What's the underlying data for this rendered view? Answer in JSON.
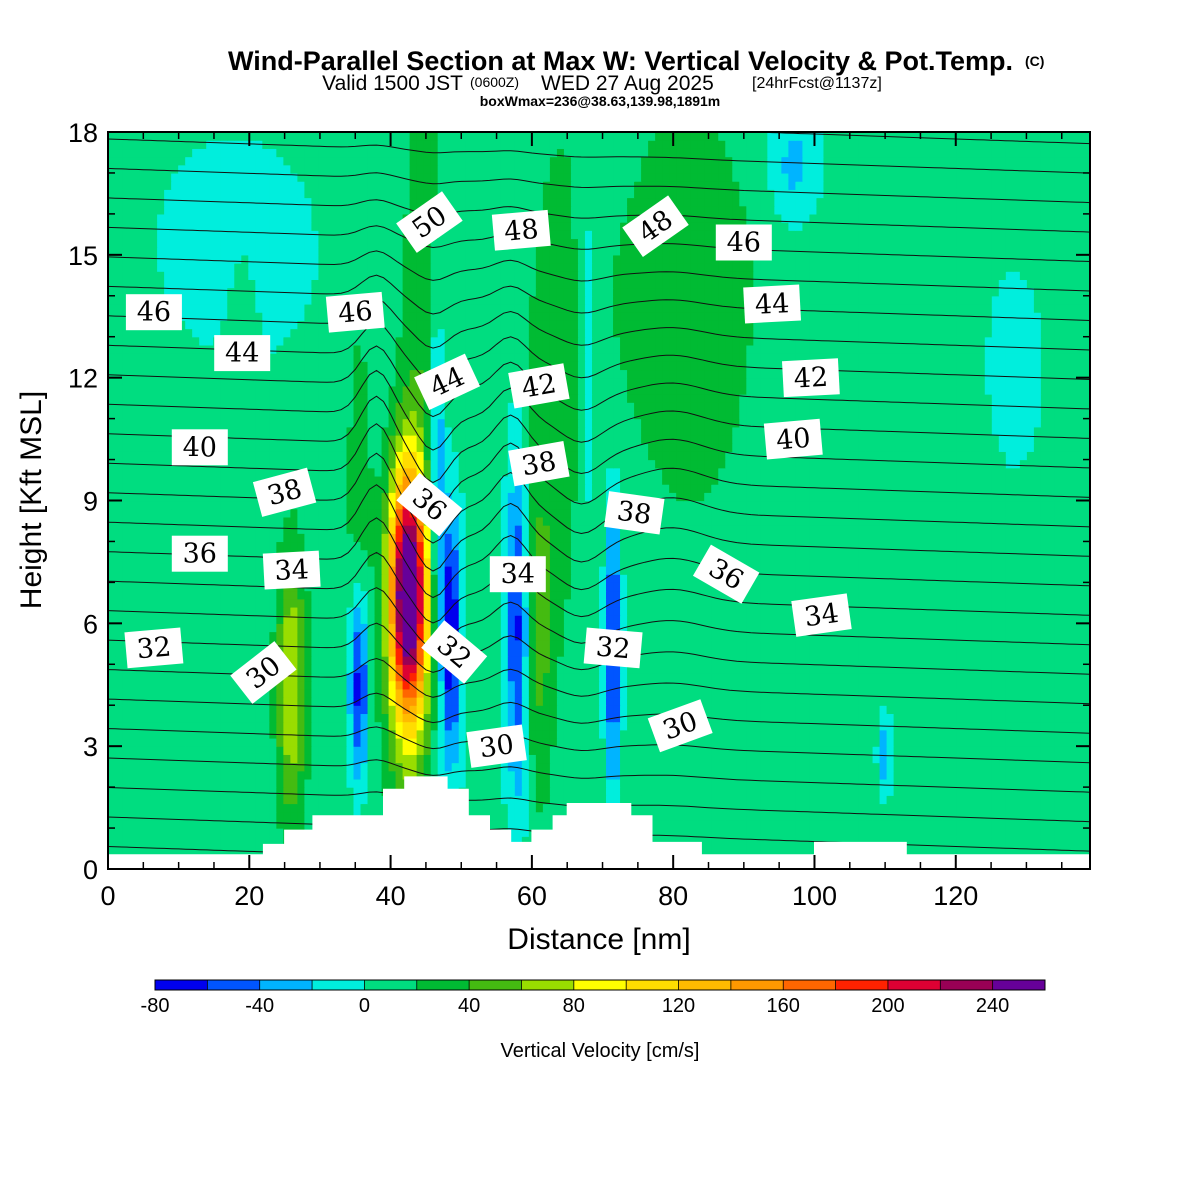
{
  "header": {
    "title": "Wind-Parallel Section at Max W: Vertical Velocity & Pot.Temp.",
    "copyright": "(C)",
    "valid_prefix": "Valid 1500 JST",
    "valid_utc": "(0600Z)",
    "valid_date": "WED 27 Aug 2025",
    "fcst": "[24hrFcst@1137z]",
    "boxwmax": "boxWmax=236@38.63,139.98,1891m"
  },
  "chart_data": {
    "type": "heatmap",
    "xlabel": "Distance [nm]",
    "ylabel": "Height [Kft MSL]",
    "xlim": [
      0,
      139
    ],
    "ylim": [
      0,
      18
    ],
    "xticks": [
      "0",
      "20",
      "40",
      "60",
      "80",
      "100",
      "120"
    ],
    "yticks": [
      "0",
      "3",
      "6",
      "9",
      "12",
      "15",
      "18"
    ],
    "colorbar": {
      "label": "Vertical Velocity [cm/s]",
      "ticks": [
        "-80",
        "-40",
        "0",
        "40",
        "80",
        "120",
        "160",
        "200",
        "240"
      ],
      "levels": [
        -80,
        -60,
        -40,
        -20,
        0,
        20,
        40,
        60,
        80,
        100,
        120,
        140,
        160,
        180,
        200,
        220,
        240,
        260
      ],
      "colors": [
        "#0000ee",
        "#0055ff",
        "#00b4ff",
        "#00eedd",
        "#00dd80",
        "#00bb33",
        "#44bb11",
        "#99dd00",
        "#ffff00",
        "#ffdd00",
        "#ffbb00",
        "#ff9900",
        "#ff6600",
        "#ff2200",
        "#dd0033",
        "#990055",
        "#660099"
      ]
    },
    "background_value": 5,
    "features": [
      {
        "x": 42.5,
        "y": 6.8,
        "sx": 1.8,
        "sy": 2.0,
        "value": 240
      },
      {
        "x": 42.5,
        "y": 5.5,
        "sx": 2.3,
        "sy": 3.6,
        "value": 60
      },
      {
        "x": 26,
        "y": 4.5,
        "sx": 1.5,
        "sy": 2.4,
        "value": 75
      },
      {
        "x": 45,
        "y": 14.5,
        "sx": 2.5,
        "sy": 4.5,
        "value": 30
      },
      {
        "x": 35.5,
        "y": 4.5,
        "sx": 1.0,
        "sy": 1.8,
        "value": -95
      },
      {
        "x": 35.5,
        "y": 7.5,
        "sx": 1.4,
        "sy": 5.0,
        "value": 30
      },
      {
        "x": 46.5,
        "y": 10.2,
        "sx": 0.9,
        "sy": 3.0,
        "value": -55
      },
      {
        "x": 48.5,
        "y": 5.8,
        "sx": 1.0,
        "sy": 2.2,
        "value": -90
      },
      {
        "x": 58,
        "y": 6.0,
        "sx": 1.1,
        "sy": 3.0,
        "value": -75
      },
      {
        "x": 61,
        "y": 5.5,
        "sx": 1.5,
        "sy": 3.0,
        "value": 35
      },
      {
        "x": 64,
        "y": 12.0,
        "sx": 4.0,
        "sy": 5.0,
        "value": 25
      },
      {
        "x": 68,
        "y": 12.5,
        "sx": 1.2,
        "sy": 4.0,
        "value": -30
      },
      {
        "x": 71.5,
        "y": 5.5,
        "sx": 0.8,
        "sy": 2.5,
        "value": -80
      },
      {
        "x": 82,
        "y": 14.0,
        "sx": 8.0,
        "sy": 4.0,
        "value": 28
      },
      {
        "x": 97,
        "y": 17.2,
        "sx": 2.5,
        "sy": 1.0,
        "value": -35
      },
      {
        "x": 110,
        "y": 2.8,
        "sx": 0.8,
        "sy": 0.8,
        "value": -45
      },
      {
        "x": 94,
        "y": 4.5,
        "sx": 6.0,
        "sy": 2.0,
        "value": -10
      },
      {
        "x": 85,
        "y": 3.5,
        "sx": 8.0,
        "sy": 3.0,
        "value": 14
      },
      {
        "x": 115,
        "y": 7.0,
        "sx": 10.0,
        "sy": 9.0,
        "value": 10
      },
      {
        "x": 127,
        "y": 12.0,
        "sx": 5.0,
        "sy": 3.0,
        "value": -12
      },
      {
        "x": 18,
        "y": 15.0,
        "sx": 12.0,
        "sy": 3.0,
        "value": -8
      },
      {
        "x": 8,
        "y": 4.0,
        "sx": 8.0,
        "sy": 4.0,
        "value": 12
      },
      {
        "x": 19,
        "y": 10.5,
        "sx": 1.5,
        "sy": 2.5,
        "value": 14
      }
    ],
    "terrain": [
      [
        0,
        0.35
      ],
      [
        22,
        0.35
      ],
      [
        22,
        0.6
      ],
      [
        25,
        0.6
      ],
      [
        25,
        0.95
      ],
      [
        29,
        0.95
      ],
      [
        29,
        1.3
      ],
      [
        39,
        1.3
      ],
      [
        39,
        1.95
      ],
      [
        42,
        1.95
      ],
      [
        42,
        2.25
      ],
      [
        48,
        2.25
      ],
      [
        48,
        1.95
      ],
      [
        51,
        1.95
      ],
      [
        51,
        1.3
      ],
      [
        54,
        1.3
      ],
      [
        54,
        0.95
      ],
      [
        57,
        0.95
      ],
      [
        57,
        0.65
      ],
      [
        60,
        0.65
      ],
      [
        60,
        0.95
      ],
      [
        63,
        0.95
      ],
      [
        63,
        1.3
      ],
      [
        65,
        1.3
      ],
      [
        65,
        1.6
      ],
      [
        74,
        1.6
      ],
      [
        74,
        1.3
      ],
      [
        77,
        1.3
      ],
      [
        77,
        0.65
      ],
      [
        84,
        0.65
      ],
      [
        84,
        0.35
      ],
      [
        100,
        0.35
      ],
      [
        100,
        0.65
      ],
      [
        113,
        0.65
      ],
      [
        113,
        0.35
      ],
      [
        139,
        0.35
      ]
    ],
    "theta_contours": {
      "levels_K": [
        26,
        27,
        28,
        29,
        30,
        31,
        32,
        33,
        34,
        35,
        36,
        37,
        38,
        39,
        40,
        41,
        42,
        43,
        44,
        45,
        46,
        47,
        48,
        49,
        50,
        51
      ],
      "labels": [
        {
          "text": "30",
          "x": 22,
          "y": 4.8,
          "angle": -38
        },
        {
          "text": "30",
          "x": 55,
          "y": 3.0,
          "angle": -8
        },
        {
          "text": "30",
          "x": 81,
          "y": 3.5,
          "angle": -20
        },
        {
          "text": "32",
          "x": 6.5,
          "y": 5.4,
          "angle": -5
        },
        {
          "text": "32",
          "x": 49,
          "y": 5.3,
          "angle": 40
        },
        {
          "text": "32",
          "x": 71.5,
          "y": 5.4,
          "angle": 5
        },
        {
          "text": "34",
          "x": 26,
          "y": 7.3,
          "angle": -3
        },
        {
          "text": "34",
          "x": 58,
          "y": 7.2,
          "angle": 0
        },
        {
          "text": "34",
          "x": 101,
          "y": 6.2,
          "angle": -8
        },
        {
          "text": "36",
          "x": 13,
          "y": 7.7,
          "angle": 0
        },
        {
          "text": "36",
          "x": 45.5,
          "y": 8.9,
          "angle": 40
        },
        {
          "text": "36",
          "x": 87.5,
          "y": 7.2,
          "angle": 30
        },
        {
          "text": "38",
          "x": 25,
          "y": 9.2,
          "angle": -15
        },
        {
          "text": "38",
          "x": 61,
          "y": 9.9,
          "angle": -10
        },
        {
          "text": "38",
          "x": 74.5,
          "y": 8.7,
          "angle": 8
        },
        {
          "text": "40",
          "x": 13,
          "y": 10.3,
          "angle": 0
        },
        {
          "text": "40",
          "x": 97,
          "y": 10.5,
          "angle": -5
        },
        {
          "text": "42",
          "x": 61,
          "y": 11.8,
          "angle": -10
        },
        {
          "text": "42",
          "x": 99.5,
          "y": 12.0,
          "angle": -3
        },
        {
          "text": "44",
          "x": 19,
          "y": 12.6,
          "angle": 0
        },
        {
          "text": "44",
          "x": 48,
          "y": 11.9,
          "angle": -25
        },
        {
          "text": "44",
          "x": 94,
          "y": 13.8,
          "angle": -3
        },
        {
          "text": "46",
          "x": 6.5,
          "y": 13.6,
          "angle": 0
        },
        {
          "text": "46",
          "x": 35,
          "y": 13.6,
          "angle": -5
        },
        {
          "text": "46",
          "x": 90,
          "y": 15.3,
          "angle": 0
        },
        {
          "text": "48",
          "x": 58.5,
          "y": 15.6,
          "angle": -5
        },
        {
          "text": "48",
          "x": 77.5,
          "y": 15.7,
          "angle": -35
        },
        {
          "text": "50",
          "x": 45.5,
          "y": 15.8,
          "angle": -35
        }
      ]
    }
  }
}
